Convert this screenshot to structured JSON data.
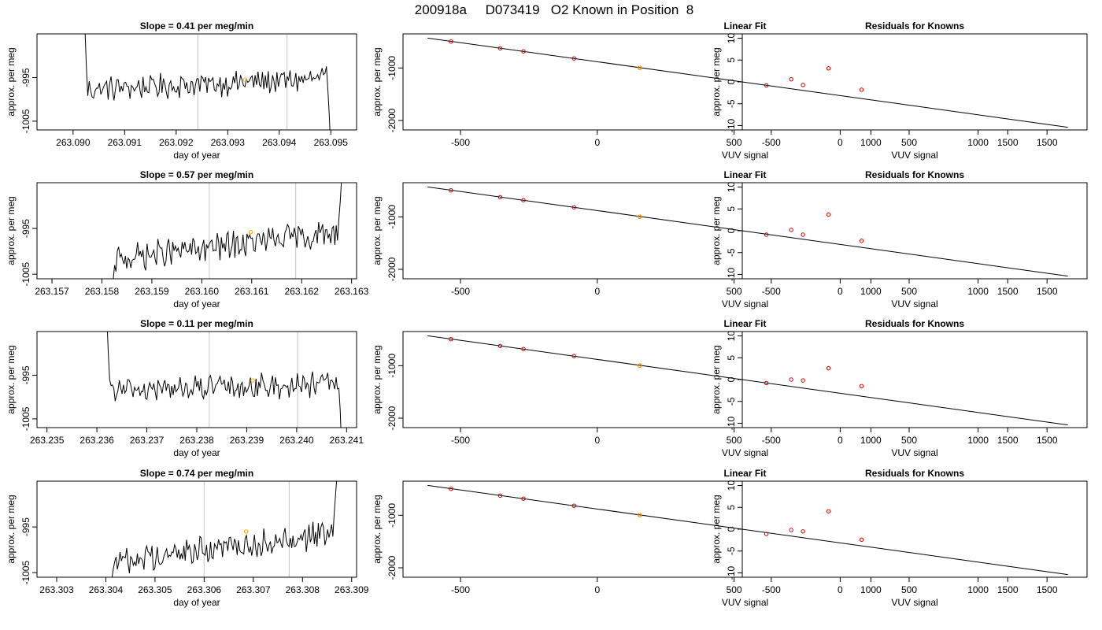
{
  "figure_title": "200918a     D073419   O2 Known in Position  8",
  "colors": {
    "trace": "#000000",
    "marker_known": "#cc0000",
    "marker_current": "#ffa500",
    "vline": "#cccccc",
    "fit_line": "#000000"
  },
  "chart_data": [
    {
      "type": "line",
      "panel": "time",
      "row": 1,
      "title": "Slope =  0.41  per meg/min",
      "xlabel": "day of year",
      "ylabel": "approx. per meg",
      "xlim": [
        263.0893,
        263.0955
      ],
      "ylim": [
        -1007,
        -985
      ],
      "xticks": [
        263.09,
        263.091,
        263.092,
        263.093,
        263.094,
        263.095
      ],
      "xtick_labels": [
        "263.090",
        "263.091",
        "263.092",
        "263.093",
        "263.094",
        "263.095"
      ],
      "yticks": [
        -995,
        -1005
      ],
      "ytick_labels": [
        "-995",
        "-1005"
      ],
      "vlines": [
        263.09242,
        263.09415
      ],
      "marker": {
        "x": 263.09334,
        "y": -995.5
      },
      "trace": {
        "start": 263.0902,
        "end": 263.095,
        "base": -996.5,
        "drift": 2.5,
        "head": [
          -976,
          -983,
          -992
        ],
        "tail": [
          -998,
          -1004,
          -1012
        ],
        "amp": 2.4
      }
    },
    {
      "type": "line",
      "panel": "fit",
      "row": 1,
      "title": "Linear Fit",
      "xlabel": "VUV signal",
      "ylabel": "approx. per meg",
      "xlim": [
        -710,
        1790
      ],
      "ylim": [
        -2180,
        -350
      ],
      "xticks": [
        -500,
        0,
        500,
        1000,
        1500
      ],
      "xtick_labels": [
        "-500",
        "0",
        "500",
        "1000",
        "1500"
      ],
      "yticks": [
        -1000,
        -2000
      ],
      "ytick_labels": [
        "-1000",
        "-2000"
      ],
      "line": {
        "x": [
          -620,
          1720
        ],
        "y": [
          -430,
          -2130
        ]
      },
      "points": {
        "x": [
          -535,
          -355,
          -270,
          -85,
          155
        ],
        "y": [
          -495,
          -625,
          -683,
          -818,
          -998
        ]
      },
      "current": {
        "x": 155,
        "y": -998
      }
    },
    {
      "type": "scatter",
      "panel": "residual",
      "row": 1,
      "title": "Residuals for Knowns",
      "xlabel": "VUV signal",
      "ylabel": "approx. per meg",
      "xlim": [
        -710,
        1790
      ],
      "ylim": [
        -11,
        11
      ],
      "xticks": [
        -500,
        0,
        500,
        1000,
        1500
      ],
      "xtick_labels": [
        "-500",
        "0",
        "500",
        "1000",
        "1500"
      ],
      "yticks": [
        10,
        5,
        0,
        -5,
        -10
      ],
      "ytick_labels": [
        "10",
        "5",
        "0",
        "-5",
        "-10"
      ],
      "x": [
        -535,
        -355,
        -270,
        -85,
        155
      ],
      "y": [
        -0.8,
        0.6,
        -0.7,
        3.1,
        -1.8
      ]
    },
    {
      "type": "line",
      "panel": "time",
      "row": 2,
      "title": "Slope =  0.57  per meg/min",
      "xlabel": "day of year",
      "ylabel": "approx. per meg",
      "xlim": [
        263.1567,
        263.1631
      ],
      "ylim": [
        -1006,
        -985
      ],
      "xticks": [
        263.157,
        263.158,
        263.159,
        263.16,
        263.161,
        263.162,
        263.163
      ],
      "xtick_labels": [
        "263.157",
        "263.158",
        "263.159",
        "263.160",
        "263.161",
        "263.162",
        "263.163"
      ],
      "yticks": [
        -995,
        -1005
      ],
      "ytick_labels": [
        "-995",
        "-1005"
      ],
      "vlines": [
        263.16015,
        263.16188
      ],
      "marker": {
        "x": 263.16098,
        "y": -995.8
      },
      "trace": {
        "start": 263.1582,
        "end": 263.1628,
        "base": -998.8,
        "drift": 6.0,
        "head": [
          -1008,
          -1006,
          -1003
        ],
        "tail": [
          -993,
          -989,
          -984
        ],
        "amp": 2.6
      }
    },
    {
      "type": "line",
      "panel": "fit",
      "row": 2,
      "title": "Linear Fit",
      "xlabel": "VUV signal",
      "ylabel": "approx. per meg",
      "xlim": [
        -710,
        1790
      ],
      "ylim": [
        -2180,
        -350
      ],
      "xticks": [
        -500,
        0,
        500,
        1000,
        1500
      ],
      "xtick_labels": [
        "-500",
        "0",
        "500",
        "1000",
        "1500"
      ],
      "yticks": [
        -1000,
        -2000
      ],
      "ytick_labels": [
        "-1000",
        "-2000"
      ],
      "line": {
        "x": [
          -620,
          1720
        ],
        "y": [
          -430,
          -2130
        ]
      },
      "points": {
        "x": [
          -535,
          -355,
          -270,
          -85,
          155
        ],
        "y": [
          -495,
          -625,
          -683,
          -818,
          -998
        ]
      },
      "current": {
        "x": 155,
        "y": -998
      }
    },
    {
      "type": "scatter",
      "panel": "residual",
      "row": 2,
      "title": "Residuals for Knowns",
      "xlabel": "VUV signal",
      "ylabel": "approx. per meg",
      "xlim": [
        -710,
        1790
      ],
      "ylim": [
        -11,
        11
      ],
      "xticks": [
        -500,
        0,
        500,
        1000,
        1500
      ],
      "xtick_labels": [
        "-500",
        "0",
        "500",
        "1000",
        "1500"
      ],
      "yticks": [
        10,
        5,
        0,
        -5,
        -10
      ],
      "ytick_labels": [
        "10",
        "5",
        "0",
        "-5",
        "-10"
      ],
      "x": [
        -535,
        -355,
        -270,
        -85,
        155
      ],
      "y": [
        -0.9,
        0.2,
        -0.9,
        3.7,
        -2.3
      ]
    },
    {
      "type": "line",
      "panel": "time",
      "row": 3,
      "title": "Slope =  0.11  per meg/min",
      "xlabel": "day of year",
      "ylabel": "approx. per meg",
      "xlim": [
        263.2348,
        263.2412
      ],
      "ylim": [
        -1007,
        -985
      ],
      "xticks": [
        263.235,
        263.236,
        263.237,
        263.238,
        263.239,
        263.24,
        263.241
      ],
      "xtick_labels": [
        "263.235",
        "263.236",
        "263.237",
        "263.238",
        "263.239",
        "263.240",
        "263.241"
      ],
      "yticks": [
        -995,
        -1005
      ],
      "ytick_labels": [
        "-995",
        "-1005"
      ],
      "vlines": [
        263.23825,
        263.24002
      ],
      "marker": {
        "x": 263.23912,
        "y": -996.2
      },
      "trace": {
        "start": 263.2362,
        "end": 263.2409,
        "base": -997.8,
        "drift": 1.5,
        "head": [
          -982,
          -990,
          -996
        ],
        "tail": [
          -998,
          -1003,
          -1012
        ],
        "amp": 2.4
      }
    },
    {
      "type": "line",
      "panel": "fit",
      "row": 3,
      "title": "Linear Fit",
      "xlabel": "VUV signal",
      "ylabel": "approx. per meg",
      "xlim": [
        -710,
        1790
      ],
      "ylim": [
        -2180,
        -350
      ],
      "xticks": [
        -500,
        0,
        500,
        1000,
        1500
      ],
      "xtick_labels": [
        "-500",
        "0",
        "500",
        "1000",
        "1500"
      ],
      "yticks": [
        -1000,
        -2000
      ],
      "ytick_labels": [
        "-1000",
        "-2000"
      ],
      "line": {
        "x": [
          -620,
          1720
        ],
        "y": [
          -430,
          -2130
        ]
      },
      "points": {
        "x": [
          -535,
          -355,
          -270,
          -85,
          155
        ],
        "y": [
          -495,
          -625,
          -683,
          -818,
          -998
        ]
      },
      "current": {
        "x": 155,
        "y": -998
      }
    },
    {
      "type": "scatter",
      "panel": "residual",
      "row": 3,
      "title": "Residuals for Knowns",
      "xlabel": "VUV signal",
      "ylabel": "approx. per meg",
      "xlim": [
        -710,
        1790
      ],
      "ylim": [
        -11,
        11
      ],
      "xticks": [
        -500,
        0,
        500,
        1000,
        1500
      ],
      "xtick_labels": [
        "-500",
        "0",
        "500",
        "1000",
        "1500"
      ],
      "yticks": [
        10,
        5,
        0,
        -5,
        -10
      ],
      "ytick_labels": [
        "10",
        "5",
        "0",
        "-5",
        "-10"
      ],
      "x": [
        -535,
        -355,
        -270,
        -85,
        155
      ],
      "y": [
        -0.8,
        0.0,
        -0.2,
        2.6,
        -1.5
      ]
    },
    {
      "type": "line",
      "panel": "time",
      "row": 4,
      "title": "Slope =  0.74  per meg/min",
      "xlabel": "day of year",
      "ylabel": "approx. per meg",
      "xlim": [
        263.3026,
        263.3091
      ],
      "ylim": [
        -1006,
        -985
      ],
      "xticks": [
        263.303,
        263.304,
        263.305,
        263.306,
        263.307,
        263.308,
        263.309
      ],
      "xtick_labels": [
        "263.303",
        "263.304",
        "263.305",
        "263.306",
        "263.307",
        "263.308",
        "263.309"
      ],
      "yticks": [
        -995,
        -1005
      ],
      "ytick_labels": [
        "-995",
        "-1005"
      ],
      "vlines": [
        263.306,
        263.30773
      ],
      "marker": {
        "x": 263.30685,
        "y": -996.0
      },
      "trace": {
        "start": 263.3041,
        "end": 263.3087,
        "base": -999.5,
        "drift": 6.5,
        "head": [
          -1008,
          -1006,
          -1004
        ],
        "tail": [
          -992,
          -988,
          -984
        ],
        "amp": 2.6
      }
    },
    {
      "type": "line",
      "panel": "fit",
      "row": 4,
      "title": "Linear Fit",
      "xlabel": "VUV signal",
      "ylabel": "approx. per meg",
      "xlim": [
        -710,
        1790
      ],
      "ylim": [
        -2180,
        -350
      ],
      "xticks": [
        -500,
        0,
        500,
        1000,
        1500
      ],
      "xtick_labels": [
        "-500",
        "0",
        "500",
        "1000",
        "1500"
      ],
      "yticks": [
        -1000,
        -2000
      ],
      "ytick_labels": [
        "-1000",
        "-2000"
      ],
      "line": {
        "x": [
          -620,
          1720
        ],
        "y": [
          -430,
          -2130
        ]
      },
      "points": {
        "x": [
          -535,
          -355,
          -270,
          -85,
          155
        ],
        "y": [
          -495,
          -625,
          -683,
          -818,
          -998
        ]
      },
      "current": {
        "x": 155,
        "y": -998
      }
    },
    {
      "type": "scatter",
      "panel": "residual",
      "row": 4,
      "title": "Residuals for Knowns",
      "xlabel": "VUV signal",
      "ylabel": "approx. per meg",
      "xlim": [
        -710,
        1790
      ],
      "ylim": [
        -11,
        11
      ],
      "xticks": [
        -500,
        0,
        500,
        1000,
        1500
      ],
      "xtick_labels": [
        "-500",
        "0",
        "500",
        "1000",
        "1500"
      ],
      "yticks": [
        10,
        5,
        0,
        -5,
        -10
      ],
      "ytick_labels": [
        "10",
        "5",
        "0",
        "-5",
        "-10"
      ],
      "x": [
        -535,
        -355,
        -270,
        -85,
        155
      ],
      "y": [
        -1.1,
        -0.2,
        -0.5,
        4.1,
        -2.4
      ]
    }
  ]
}
